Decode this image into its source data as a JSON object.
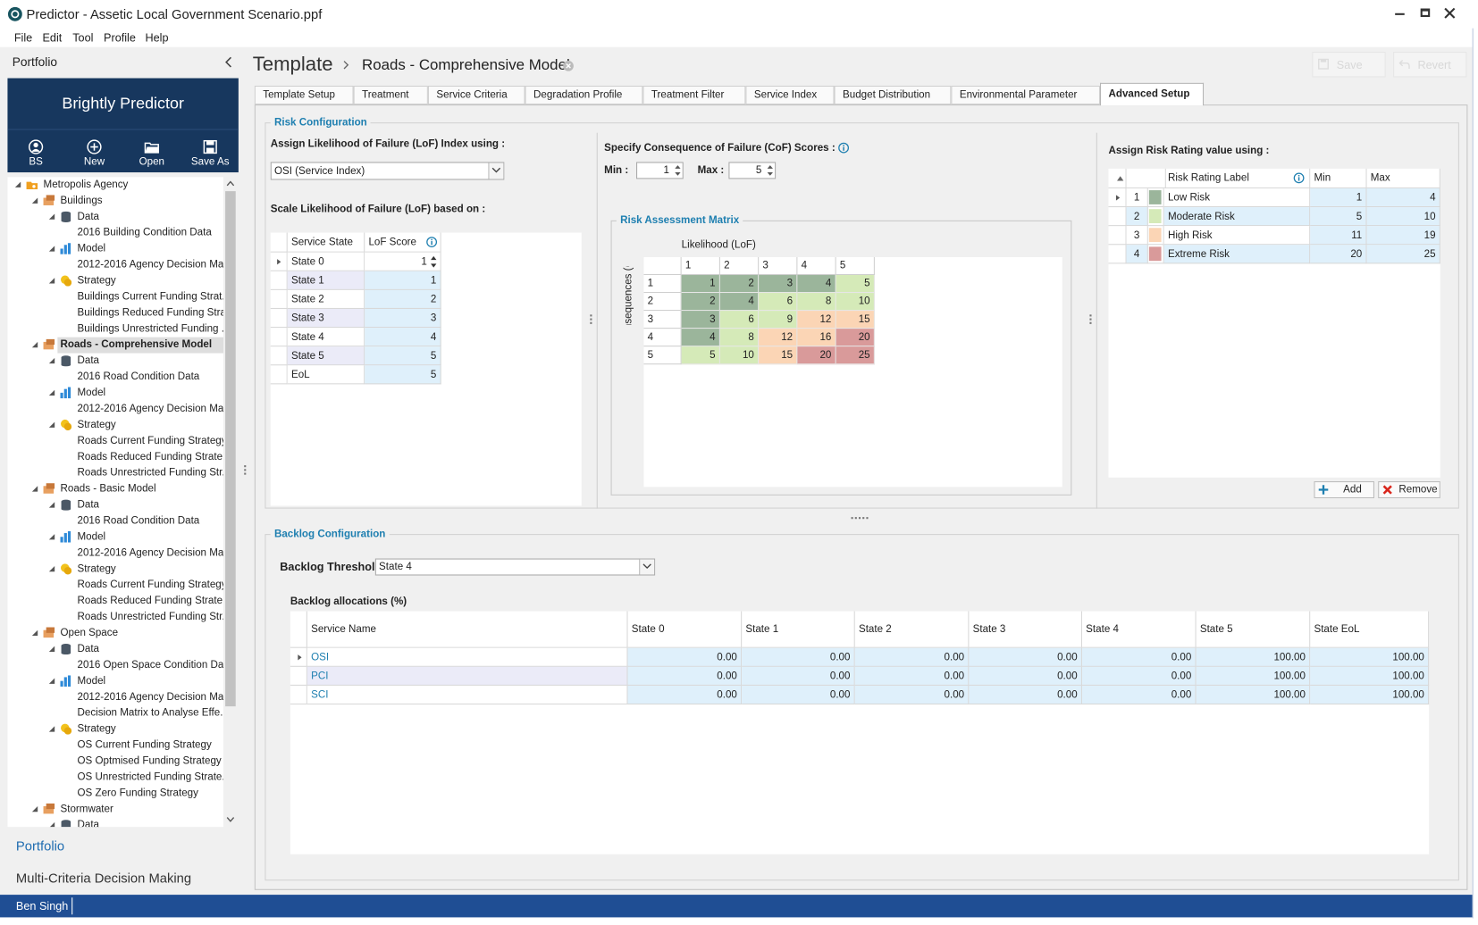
{
  "window": {
    "title": "Predictor - Assetic Local Government Scenario.ppf"
  },
  "menu": [
    "File",
    "Edit",
    "Tool",
    "Profile",
    "Help"
  ],
  "sidebar": {
    "header": "Portfolio",
    "brand": {
      "light": "Brightly",
      "bold": "Predictor"
    },
    "toolbar": [
      "BS",
      "New",
      "Open",
      "Save As"
    ],
    "tree": [
      {
        "label": "Metropolis Agency",
        "level": 0,
        "icon": "agency"
      },
      {
        "label": "Buildings",
        "level": 1,
        "icon": "group"
      },
      {
        "label": "Data",
        "level": 2,
        "icon": "data"
      },
      {
        "label": "2016 Building Condition Data",
        "level": 3
      },
      {
        "label": "Model",
        "level": 2,
        "icon": "model"
      },
      {
        "label": "2012-2016 Agency Decision Ma...",
        "level": 3
      },
      {
        "label": "Strategy",
        "level": 2,
        "icon": "strategy"
      },
      {
        "label": "Buildings Current Funding Strat...",
        "level": 3
      },
      {
        "label": "Buildings Reduced Funding Stra...",
        "level": 3
      },
      {
        "label": "Buildings Unrestricted Funding ...",
        "level": 3
      },
      {
        "label": "Roads - Comprehensive Model",
        "level": 1,
        "icon": "group",
        "selected": true
      },
      {
        "label": "Data",
        "level": 2,
        "icon": "data"
      },
      {
        "label": "2016 Road Condition Data",
        "level": 3
      },
      {
        "label": "Model",
        "level": 2,
        "icon": "model"
      },
      {
        "label": "2012-2016 Agency Decision Ma...",
        "level": 3
      },
      {
        "label": "Strategy",
        "level": 2,
        "icon": "strategy"
      },
      {
        "label": "Roads Current Funding Strategy",
        "level": 3
      },
      {
        "label": "Roads Reduced Funding Strate...",
        "level": 3
      },
      {
        "label": "Roads Unrestricted Funding Str...",
        "level": 3
      },
      {
        "label": "Roads - Basic Model",
        "level": 1,
        "icon": "group"
      },
      {
        "label": "Data",
        "level": 2,
        "icon": "data"
      },
      {
        "label": "2016 Road Condition Data",
        "level": 3
      },
      {
        "label": "Model",
        "level": 2,
        "icon": "model"
      },
      {
        "label": "2012-2016 Agency Decision Ma...",
        "level": 3
      },
      {
        "label": "Strategy",
        "level": 2,
        "icon": "strategy"
      },
      {
        "label": "Roads Current Funding Strategy",
        "level": 3
      },
      {
        "label": "Roads Reduced Funding Strate...",
        "level": 3
      },
      {
        "label": "Roads Unrestricted Funding Str...",
        "level": 3
      },
      {
        "label": "Open Space",
        "level": 1,
        "icon": "group"
      },
      {
        "label": "Data",
        "level": 2,
        "icon": "data"
      },
      {
        "label": "2016 Open Space Condition Data",
        "level": 3
      },
      {
        "label": "Model",
        "level": 2,
        "icon": "model"
      },
      {
        "label": "2012-2016 Agency Decision Ma...",
        "level": 3
      },
      {
        "label": "Decision Matrix to Analyse Effe...",
        "level": 3
      },
      {
        "label": "Strategy",
        "level": 2,
        "icon": "strategy"
      },
      {
        "label": "OS Current Funding Strategy",
        "level": 3
      },
      {
        "label": "OS Optmised Funding Strategy ...",
        "level": 3
      },
      {
        "label": "OS Unrestricted Funding Strate...",
        "level": 3
      },
      {
        "label": "OS Zero Funding Strategy",
        "level": 3
      },
      {
        "label": "Stormwater",
        "level": 1,
        "icon": "group"
      },
      {
        "label": "Data",
        "level": 2,
        "icon": "data"
      }
    ],
    "nav": [
      "Portfolio",
      "Multi-Criteria Decision Making"
    ]
  },
  "status": {
    "user": "Ben Singh"
  },
  "breadcrumb": {
    "root": "Template",
    "current": "Roads - Comprehensive Model"
  },
  "actions": [
    "Save",
    "Revert"
  ],
  "tabs": {
    "items": [
      "Template Setup",
      "Treatment",
      "Service Criteria",
      "Degradation Profile",
      "Treatment Filter",
      "Service Index",
      "Budget Distribution",
      "Environmental Parameter",
      "Advanced Setup"
    ],
    "active": 8
  },
  "risk": {
    "title": "Risk Configuration",
    "lof": {
      "label": "Assign Likelihood of Failure (LoF) Index using :",
      "index": "OSI (Service Index)",
      "scale_label": "Scale Likelihood of Failure (LoF) based on :",
      "columns": [
        "Service State",
        "LoF Score"
      ],
      "rows": [
        {
          "state": "State 0",
          "score": 1
        },
        {
          "state": "State 1",
          "score": 1
        },
        {
          "state": "State 2",
          "score": 2
        },
        {
          "state": "State 3",
          "score": 3
        },
        {
          "state": "State 4",
          "score": 4
        },
        {
          "state": "State 5",
          "score": 5
        },
        {
          "state": "EoL",
          "score": 5
        }
      ]
    },
    "cof": {
      "label": "Specify Consequence of Failure (CoF) Scores :",
      "min_label": "Min :",
      "min": 1,
      "max_label": "Max :",
      "max": 5
    },
    "matrix": {
      "title": "Risk Assessment Matrix",
      "x_label": "Likelihood (LoF)",
      "y_label": "Consequences (CoF)",
      "columns": [
        1,
        2,
        3,
        4,
        5
      ],
      "rows": [
        1,
        2,
        3,
        4,
        5
      ],
      "cells": [
        [
          1,
          2,
          3,
          4,
          5
        ],
        [
          2,
          4,
          6,
          8,
          10
        ],
        [
          3,
          6,
          9,
          12,
          15
        ],
        [
          4,
          8,
          12,
          16,
          20
        ],
        [
          5,
          10,
          15,
          20,
          25
        ]
      ]
    },
    "rating": {
      "label": "Assign Risk Rating value using :",
      "columns": [
        "Risk Rating Label",
        "Min",
        "Max"
      ],
      "rows": [
        {
          "id": 1,
          "label": "Low Risk",
          "color": "#9bb59b",
          "min": 1,
          "max": 4
        },
        {
          "id": 2,
          "label": "Moderate Risk",
          "color": "#d5eab8",
          "min": 5,
          "max": 10
        },
        {
          "id": 3,
          "label": "High Risk",
          "color": "#fbd5b5",
          "min": 11,
          "max": 19
        },
        {
          "id": 4,
          "label": "Extreme Risk",
          "color": "#d99a9a",
          "min": 20,
          "max": 25
        }
      ]
    },
    "buttons": [
      "Add",
      "Remove"
    ]
  },
  "backlog": {
    "title": "Backlog Configuration",
    "threshold_label": "Backlog Threshold",
    "threshold": "State 4",
    "allocations_title": "Backlog allocations (%)",
    "columns": [
      "Service Name",
      "State 0",
      "State 1",
      "State 2",
      "State 3",
      "State 4",
      "State 5",
      "State EoL"
    ],
    "rows": [
      {
        "name": "OSI",
        "values": [
          0,
          0,
          0,
          0,
          0,
          100,
          100
        ],
        "value_labels": [
          "0.00",
          "0.00",
          "0.00",
          "0.00",
          "0.00",
          "100.00",
          "100.00"
        ]
      },
      {
        "name": "PCI",
        "values": [
          0,
          0,
          0,
          0,
          0,
          100,
          100
        ],
        "value_labels": [
          "0.00",
          "0.00",
          "0.00",
          "0.00",
          "0.00",
          "100.00",
          "100.00"
        ]
      },
      {
        "name": "SCI",
        "values": [
          0,
          0,
          0,
          0,
          0,
          100,
          100
        ],
        "value_labels": [
          "0.00",
          "0.00",
          "0.00",
          "0.00",
          "0.00",
          "100.00",
          "100.00"
        ]
      }
    ]
  }
}
